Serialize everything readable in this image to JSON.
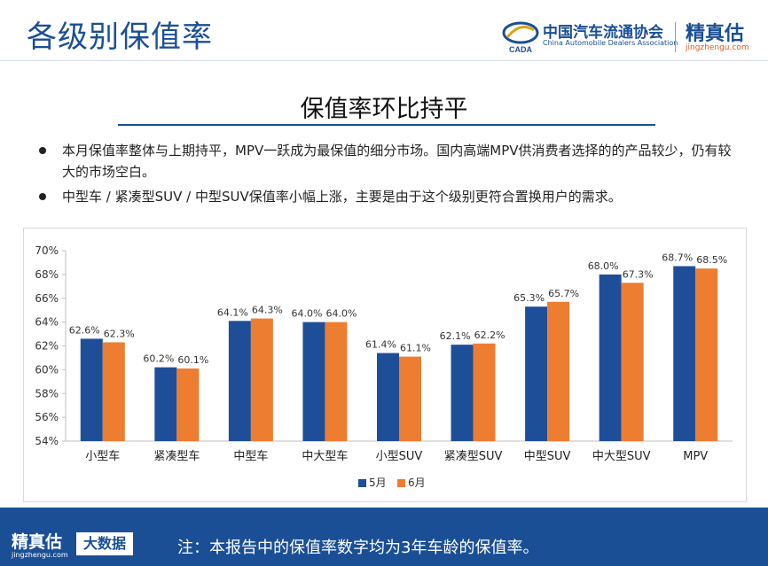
{
  "header": {
    "title": "各级别保值率",
    "caada_cn": "中国汽车流通协会",
    "caada_en": "China Automobile Dealers Association",
    "caada_mark": "CADA",
    "jzg_name": "精真估",
    "jzg_url": "jingzhengu.com"
  },
  "subtitle": "保值率环比持平",
  "bullets": [
    "本月保值率整体与上期持平，MPV一跃成为最保值的细分市场。国内高端MPV供消费者选择的的产品较少，仍有较大的市场空白。",
    "中型车 / 紧凑型SUV / 中型SUV保值率小幅上涨，主要是由于这个级别更符合置换用户的需求。"
  ],
  "footer": {
    "brand": "精真估",
    "url": "jingzhengu.com",
    "tag": "大数据",
    "note": "注：本报告中的保值率数字均为3年车龄的保值率。"
  },
  "colors": {
    "accent": "#1a4f95",
    "series_may": "#1f4e99",
    "series_june": "#ed7d31",
    "orange": "#d75a1c"
  },
  "chart_data": {
    "type": "bar",
    "title": "",
    "xlabel": "",
    "ylabel": "",
    "ylim": [
      54,
      70
    ],
    "yticks": [
      54,
      56,
      58,
      60,
      62,
      64,
      66,
      68,
      70
    ],
    "y_tick_suffix": "%",
    "grid": false,
    "legend": "bottom-center",
    "categories": [
      "小型车",
      "紧凑型车",
      "中型车",
      "中大型车",
      "小型SUV",
      "紧凑型SUV",
      "中型SUV",
      "中大型SUV",
      "MPV"
    ],
    "series": [
      {
        "name": "5月",
        "color": "#1f4e99",
        "values": [
          62.6,
          60.2,
          64.1,
          64.0,
          61.4,
          62.1,
          65.3,
          68.0,
          68.7
        ]
      },
      {
        "name": "6月",
        "color": "#ed7d31",
        "values": [
          62.3,
          60.1,
          64.3,
          64.0,
          61.1,
          62.2,
          65.7,
          67.3,
          68.5
        ]
      }
    ]
  }
}
